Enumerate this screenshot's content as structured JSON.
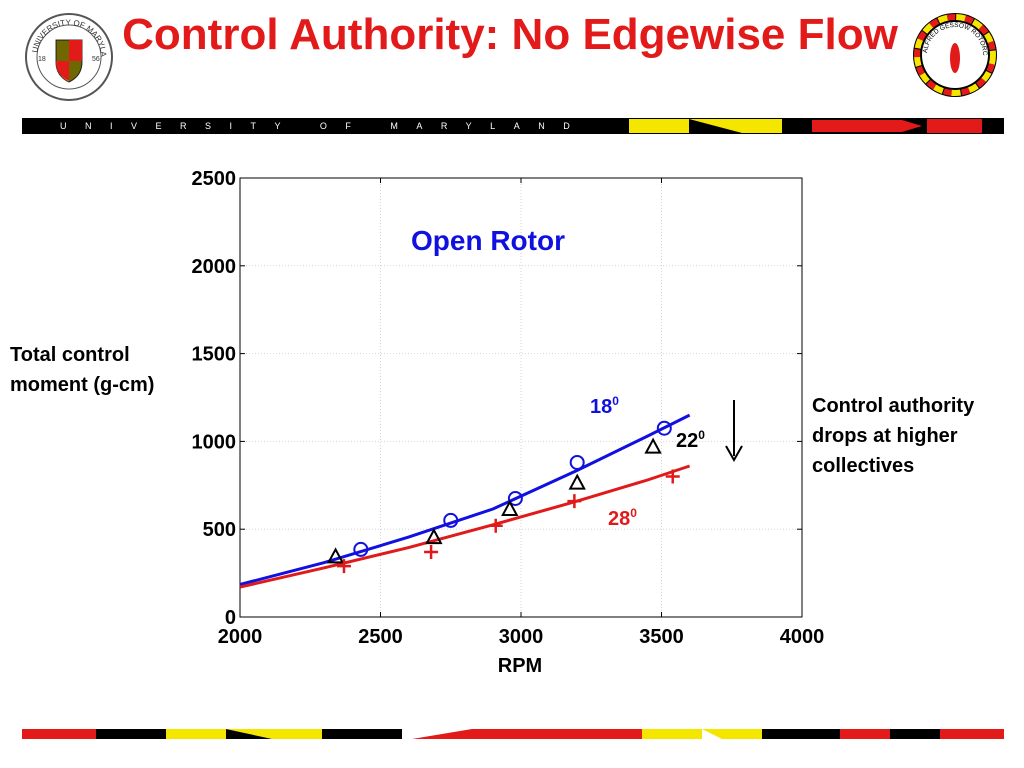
{
  "slide": {
    "title": "Control Authority: No Edgewise Flow",
    "banner_text": "UNIVERSITY OF MARYLAND",
    "logo_left_text": "UNIVERSITY OF MARYLAND",
    "logo_left_years": [
      "18",
      "56"
    ],
    "logo_right_text": "ALFRED GESSOW ROTORCRAFT CENTER",
    "annotation": "Control authority drops at higher collectives"
  },
  "colors": {
    "title": "#e21a1a",
    "blue_series": "#1010e0",
    "red_series": "#e01a1a",
    "black_series": "#000000",
    "flag_red": "#e21a1a",
    "flag_yellow": "#f5e600",
    "flag_black": "#000000"
  },
  "chart_data": {
    "type": "scatter",
    "title": "Open Rotor",
    "xlabel": "RPM",
    "ylabel": "Total control moment (g-cm)",
    "xlim": [
      2000,
      4000
    ],
    "ylim": [
      0,
      2500
    ],
    "xticks": [
      2000,
      2500,
      3000,
      3500,
      4000
    ],
    "yticks": [
      0,
      500,
      1000,
      1500,
      2000,
      2500
    ],
    "grid": true,
    "series": [
      {
        "name": "18",
        "label": "18⁰",
        "marker": "circle",
        "color": "#1010e0",
        "points": [
          [
            2430,
            385
          ],
          [
            2750,
            550
          ],
          [
            2980,
            675
          ],
          [
            3200,
            880
          ],
          [
            3510,
            1075
          ]
        ],
        "fit": [
          [
            2000,
            185
          ],
          [
            2300,
            310
          ],
          [
            2600,
            455
          ],
          [
            2900,
            615
          ],
          [
            3200,
            835
          ],
          [
            3450,
            1030
          ],
          [
            3600,
            1150
          ]
        ]
      },
      {
        "name": "22",
        "label": "22⁰",
        "marker": "triangle",
        "color": "#000000",
        "points": [
          [
            2340,
            345
          ],
          [
            2690,
            455
          ],
          [
            2960,
            615
          ],
          [
            3200,
            765
          ],
          [
            3470,
            970
          ]
        ]
      },
      {
        "name": "28",
        "label": "28⁰",
        "marker": "plus",
        "color": "#e01a1a",
        "points": [
          [
            2370,
            290
          ],
          [
            2680,
            370
          ],
          [
            2910,
            520
          ],
          [
            3190,
            660
          ],
          [
            3540,
            800
          ]
        ],
        "fit": [
          [
            2000,
            170
          ],
          [
            2300,
            280
          ],
          [
            2600,
            395
          ],
          [
            2900,
            525
          ],
          [
            3200,
            660
          ],
          [
            3450,
            780
          ],
          [
            3600,
            860
          ]
        ]
      }
    ]
  }
}
